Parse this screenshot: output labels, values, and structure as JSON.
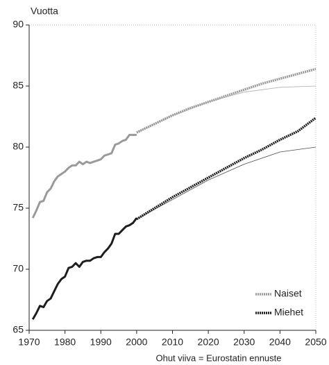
{
  "chart_data": {
    "type": "line",
    "y_label": "Vuotta",
    "note": "Ohut viiva = Eurostatin ennuste",
    "xlim": [
      1970,
      2050
    ],
    "xticks": [
      1970,
      1980,
      1990,
      2000,
      2010,
      2020,
      2030,
      2040,
      2050
    ],
    "ylim": [
      65,
      90
    ],
    "yticks": [
      65,
      70,
      75,
      80,
      85,
      90
    ],
    "grid": false,
    "legend": "lower right",
    "series": [
      {
        "name": "Naiset",
        "color": "#9a9a9a",
        "x": [
          1971,
          1972,
          1973,
          1974,
          1975,
          1976,
          1977,
          1978,
          1979,
          1980,
          1981,
          1982,
          1983,
          1984,
          1985,
          1986,
          1987,
          1988,
          1989,
          1990,
          1991,
          1992,
          1993,
          1994,
          1995,
          1996,
          1997,
          1998,
          1999,
          2000
        ],
        "values": [
          74.2,
          74.8,
          75.5,
          75.6,
          76.3,
          76.6,
          77.2,
          77.6,
          77.8,
          78.0,
          78.3,
          78.5,
          78.5,
          78.8,
          78.6,
          78.8,
          78.7,
          78.8,
          78.9,
          79.0,
          79.3,
          79.4,
          79.5,
          80.2,
          80.3,
          80.5,
          80.6,
          81.0,
          81.0,
          81.0
        ],
        "projection_x": [
          2000,
          2005,
          2010,
          2015,
          2020,
          2025,
          2030,
          2035,
          2040,
          2045,
          2050
        ],
        "projection_values": [
          81.2,
          81.9,
          82.6,
          83.2,
          83.7,
          84.2,
          84.7,
          85.2,
          85.6,
          86.0,
          86.4
        ],
        "eurostat_x": [
          2000,
          2010,
          2020,
          2030,
          2040,
          2050
        ],
        "eurostat_values": [
          81.2,
          82.6,
          83.7,
          84.5,
          84.9,
          85.0
        ]
      },
      {
        "name": "Miehet",
        "color": "#1e1e1e",
        "x": [
          1971,
          1972,
          1973,
          1974,
          1975,
          1976,
          1977,
          1978,
          1979,
          1980,
          1981,
          1982,
          1983,
          1984,
          1985,
          1986,
          1987,
          1988,
          1989,
          1990,
          1991,
          1992,
          1993,
          1994,
          1995,
          1996,
          1997,
          1998,
          1999,
          2000
        ],
        "values": [
          65.9,
          66.4,
          67.0,
          66.9,
          67.4,
          67.6,
          68.2,
          68.8,
          69.2,
          69.4,
          70.1,
          70.2,
          70.5,
          70.2,
          70.6,
          70.7,
          70.7,
          70.9,
          71.0,
          71.0,
          71.4,
          71.7,
          72.1,
          72.9,
          72.9,
          73.2,
          73.5,
          73.6,
          73.8,
          74.2
        ],
        "projection_x": [
          2000,
          2005,
          2010,
          2015,
          2020,
          2025,
          2030,
          2035,
          2040,
          2045,
          2050
        ],
        "projection_values": [
          74.1,
          75.0,
          75.9,
          76.7,
          77.5,
          78.3,
          79.1,
          79.8,
          80.6,
          81.3,
          82.4
        ],
        "eurostat_x": [
          2000,
          2010,
          2020,
          2030,
          2040,
          2050
        ],
        "eurostat_values": [
          74.1,
          75.7,
          77.3,
          78.6,
          79.6,
          80.0
        ]
      }
    ]
  }
}
